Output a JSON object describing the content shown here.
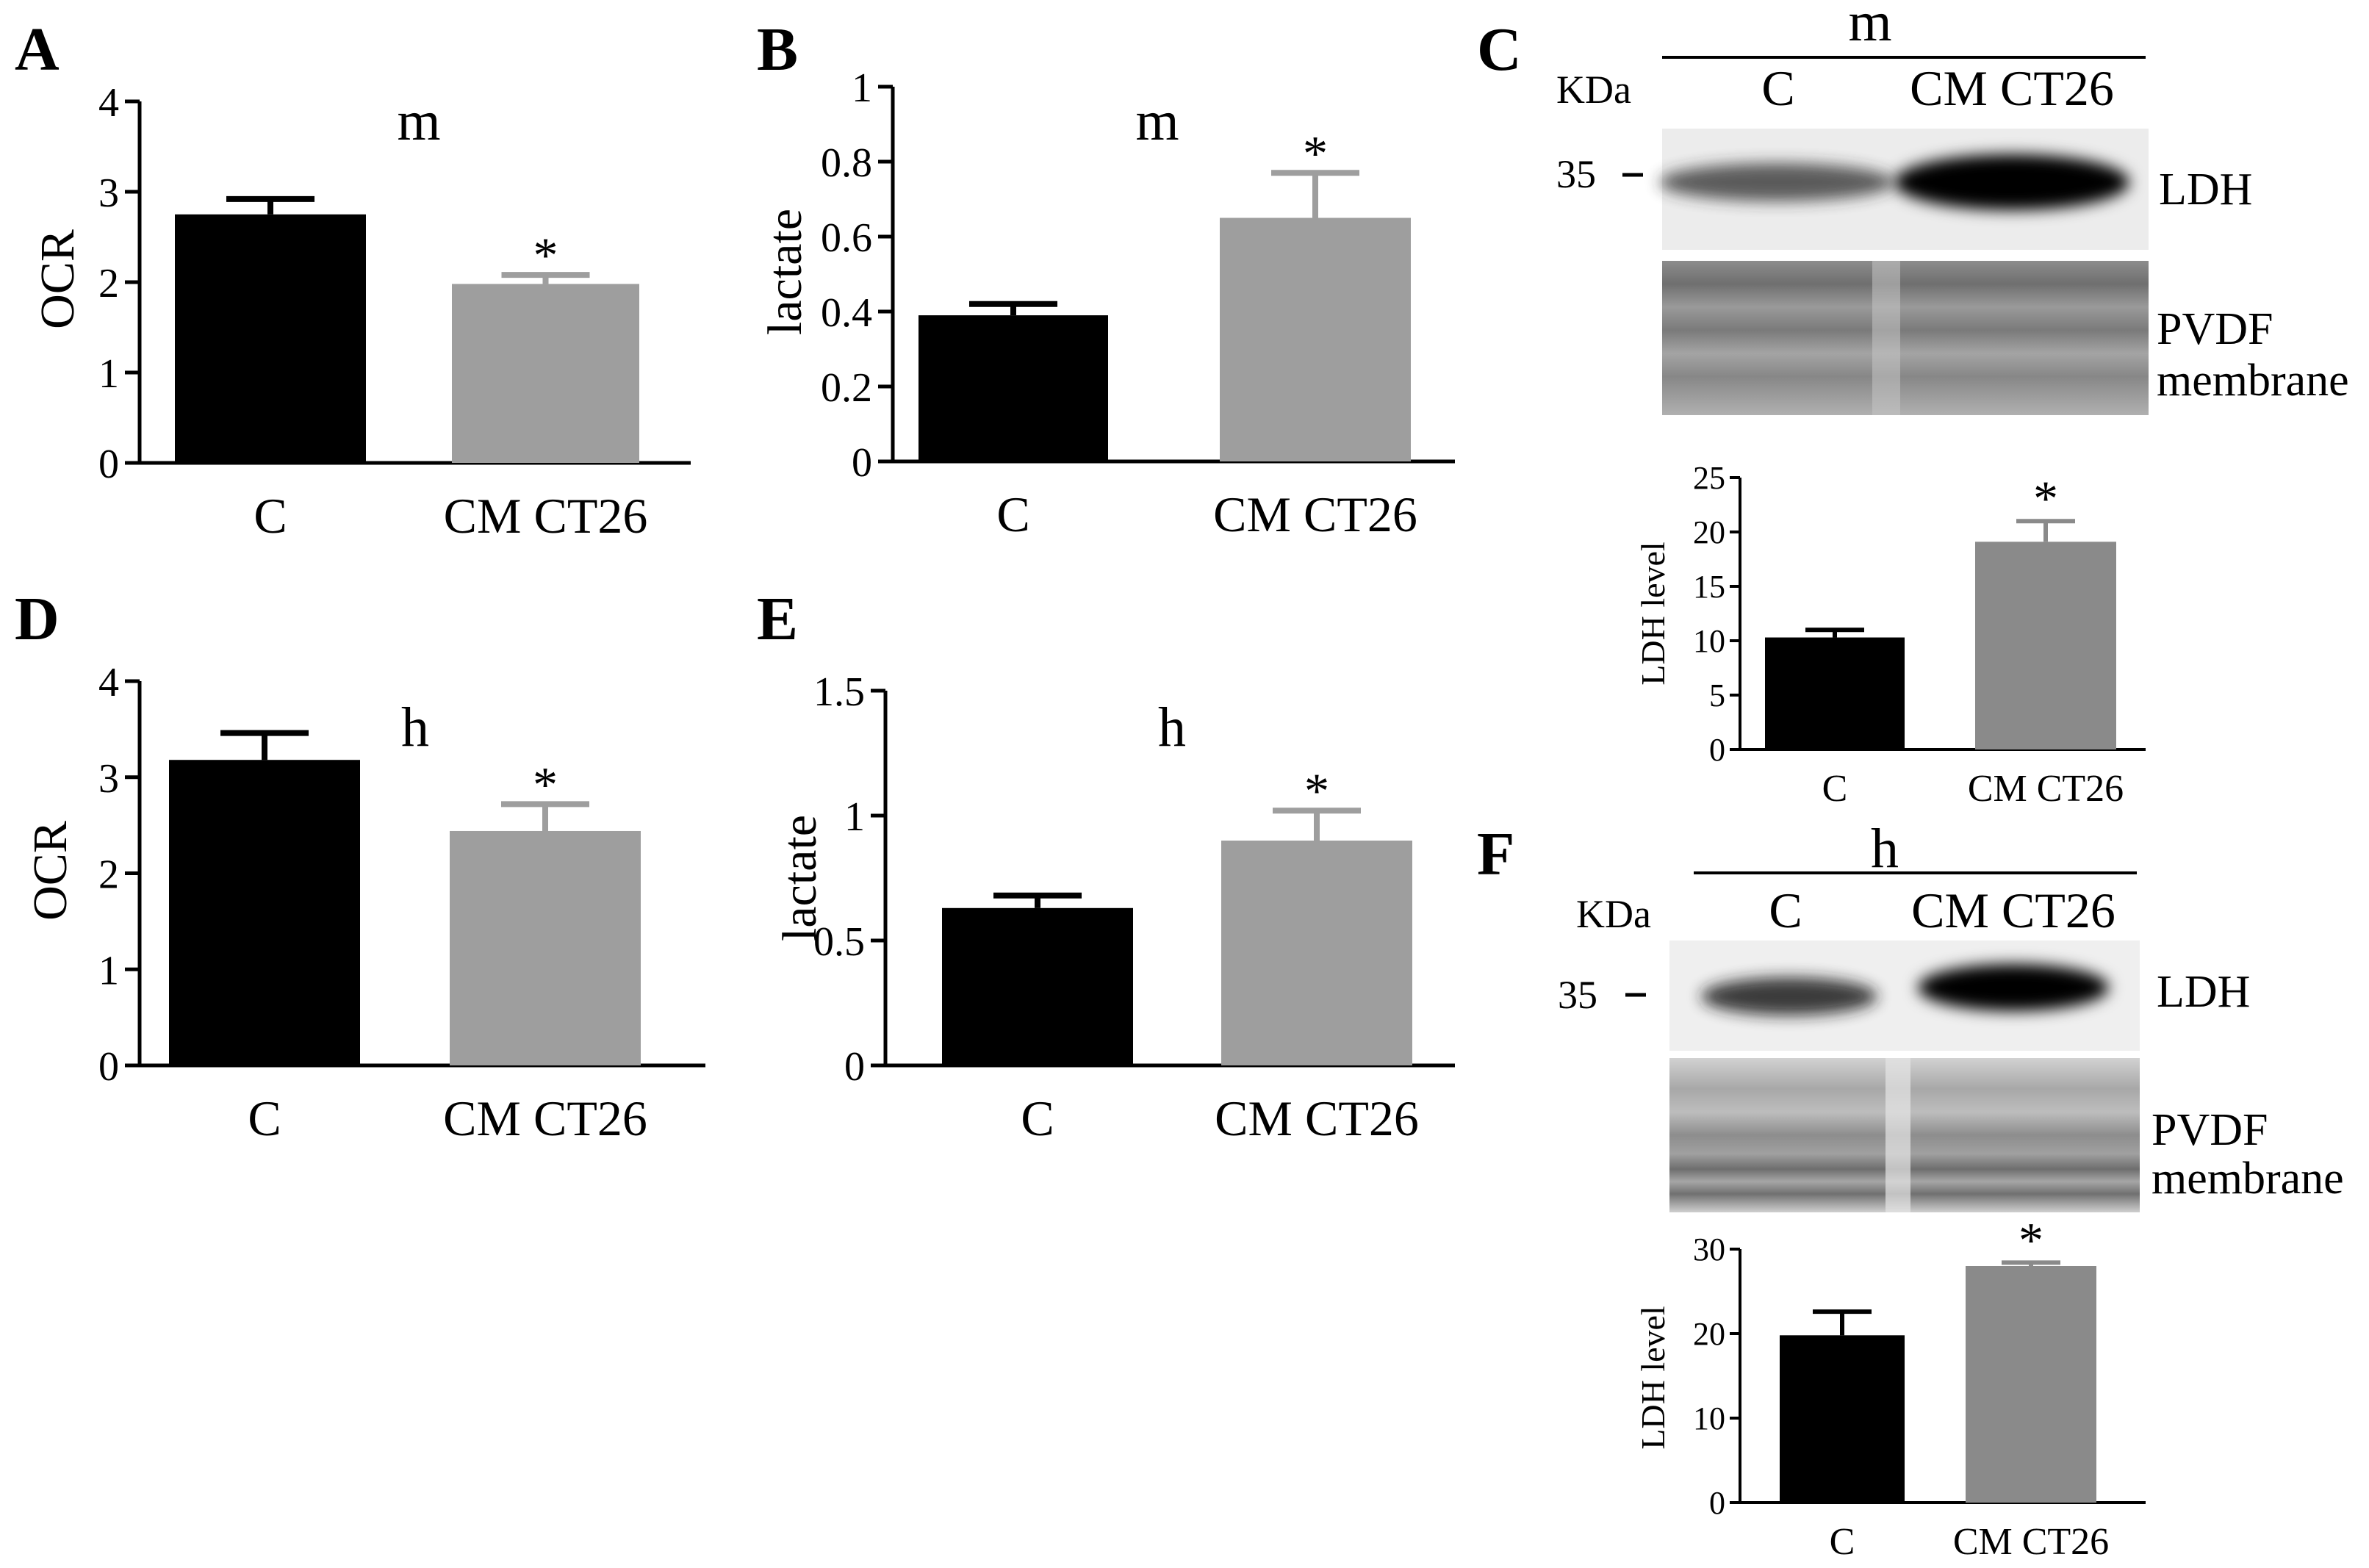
{
  "colors": {
    "control": "#000000",
    "treated": "#9e9e9e",
    "treated_dark": "#8a8a8a",
    "axis": "#000000"
  },
  "chart_data": [
    {
      "id": "A",
      "type": "bar",
      "panel_label": "A",
      "subtitle": "m",
      "categories": [
        "C",
        "CM CT26"
      ],
      "values": [
        2.75,
        1.98
      ],
      "errors": [
        0.17,
        0.1
      ],
      "significance": [
        "",
        "*"
      ],
      "ylabel": "OCR",
      "xlabel": "",
      "ylim": [
        0,
        4
      ],
      "yticks": [
        "0",
        "1",
        "2",
        "3",
        "4"
      ]
    },
    {
      "id": "B",
      "type": "bar",
      "panel_label": "B",
      "subtitle": "m",
      "categories": [
        "C",
        "CM CT26"
      ],
      "values": [
        0.39,
        0.65
      ],
      "errors": [
        0.03,
        0.12
      ],
      "significance": [
        "",
        "*"
      ],
      "ylabel": "lactate",
      "xlabel": "",
      "ylim": [
        0,
        1
      ],
      "yticks": [
        "0",
        "0.2",
        "0.4",
        "0.6",
        "0.8",
        "1"
      ]
    },
    {
      "id": "D",
      "type": "bar",
      "panel_label": "D",
      "subtitle": "h",
      "categories": [
        "C",
        "CM CT26"
      ],
      "values": [
        3.18,
        2.44
      ],
      "errors": [
        0.28,
        0.28
      ],
      "significance": [
        "",
        "*"
      ],
      "ylabel": "OCR",
      "xlabel": "",
      "ylim": [
        0,
        4
      ],
      "yticks": [
        "0",
        "1",
        "2",
        "3",
        "4"
      ]
    },
    {
      "id": "E",
      "type": "bar",
      "panel_label": "E",
      "subtitle": "h",
      "categories": [
        "C",
        "CM CT26"
      ],
      "values": [
        0.63,
        0.9
      ],
      "errors": [
        0.05,
        0.12
      ],
      "significance": [
        "",
        "*"
      ],
      "ylabel": "lactate",
      "xlabel": "",
      "ylim": [
        0,
        1.5
      ],
      "yticks": [
        "0",
        "0.5",
        "1",
        "1.5"
      ]
    },
    {
      "id": "C_bar",
      "type": "bar",
      "panel_label": "",
      "subtitle": "",
      "categories": [
        "C",
        "CM CT26"
      ],
      "values": [
        10.3,
        19.1
      ],
      "errors": [
        0.7,
        1.9
      ],
      "significance": [
        "",
        "*"
      ],
      "ylabel": "LDH level",
      "xlabel": "",
      "ylim": [
        0,
        25
      ],
      "yticks": [
        "0",
        "5",
        "10",
        "15",
        "20",
        "25"
      ]
    },
    {
      "id": "F_bar",
      "type": "bar",
      "panel_label": "",
      "subtitle": "",
      "categories": [
        "C",
        "CM CT26"
      ],
      "values": [
        19.8,
        28.0
      ],
      "errors": [
        2.8,
        0.4
      ],
      "significance": [
        "",
        "*"
      ],
      "ylabel": "LDH level",
      "xlabel": "",
      "ylim": [
        0,
        30
      ],
      "yticks": [
        "0",
        "10",
        "20",
        "30"
      ]
    }
  ],
  "blots": [
    {
      "id": "C",
      "panel_label": "C",
      "header": "m",
      "kda_label": "KDa",
      "marker": "35",
      "lanes": [
        "C",
        "CM CT26"
      ],
      "band_label": "LDH",
      "membrane_label_1": "PVDF",
      "membrane_label_2": "membrane"
    },
    {
      "id": "F",
      "panel_label": "F",
      "header": "h",
      "kda_label": "KDa",
      "marker": "35",
      "lanes": [
        "C",
        "CM CT26"
      ],
      "band_label": "LDH",
      "membrane_label_1": "PVDF",
      "membrane_label_2": "membrane"
    }
  ]
}
